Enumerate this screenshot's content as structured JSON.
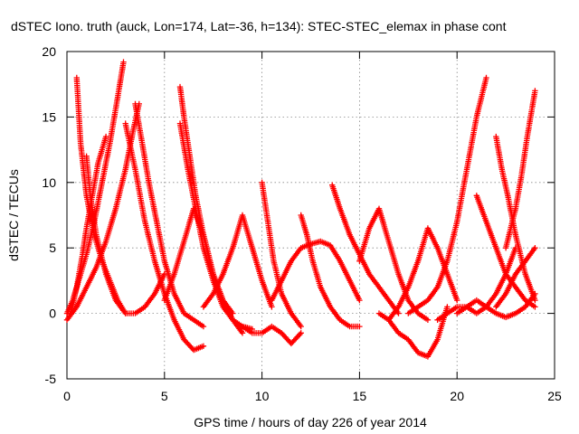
{
  "chart_data": {
    "type": "scatter",
    "title": "dSTEC Iono. truth (auck, Lon=174, Lat=-36, h=134): STEC-STEC_elemax in phase cont",
    "xlabel": "GPS time / hours of day 226 of year 2014",
    "ylabel": "dSTEC  / TECUs",
    "xlim": [
      0,
      25
    ],
    "ylim": [
      -5,
      20
    ],
    "xticks": [
      0,
      5,
      10,
      15,
      20,
      25
    ],
    "yticks": [
      -5,
      0,
      5,
      10,
      15,
      20
    ],
    "xtick_labels": [
      "0",
      "5",
      "10",
      "15",
      "20",
      "25"
    ],
    "ytick_labels": [
      "-5",
      "0",
      "5",
      "10",
      "15",
      "20"
    ],
    "grid": true,
    "marker": "+",
    "color": "#ff0000",
    "series": [
      {
        "x": [
          0.0,
          0.3,
          0.6,
          1.0,
          1.4,
          1.8,
          2.2,
          2.6,
          2.9
        ],
        "y": [
          0.0,
          1.0,
          2.5,
          4.5,
          7.0,
          10.0,
          13.0,
          16.5,
          19.2
        ]
      },
      {
        "x": [
          0.5,
          0.7,
          1.0,
          1.4,
          1.8,
          2.2,
          2.6,
          3.0
        ],
        "y": [
          18.0,
          13.0,
          9.0,
          6.0,
          4.0,
          2.5,
          1.0,
          0.0
        ]
      },
      {
        "x": [
          0.0,
          0.5,
          1.0,
          1.5,
          2.0,
          2.5,
          3.0,
          3.4,
          3.7
        ],
        "y": [
          -0.5,
          0.5,
          2.0,
          3.5,
          5.5,
          8.0,
          11.0,
          14.0,
          16.0
        ]
      },
      {
        "x": [
          1.0,
          1.2,
          1.5,
          2.0,
          2.5,
          3.0,
          3.5,
          4.0,
          4.5,
          5.0
        ],
        "y": [
          12.0,
          9.0,
          6.0,
          3.0,
          1.0,
          0.0,
          0.0,
          0.5,
          1.5,
          3.0
        ]
      },
      {
        "x": [
          0.2,
          0.5,
          0.8,
          1.0,
          1.3,
          1.6,
          2.0
        ],
        "y": [
          0.0,
          2.0,
          4.5,
          6.5,
          9.0,
          11.5,
          13.5
        ]
      },
      {
        "x": [
          3.5,
          3.8,
          4.2,
          4.6,
          5.0,
          5.5,
          6.0,
          6.5,
          7.0
        ],
        "y": [
          16.0,
          13.5,
          10.0,
          7.0,
          4.0,
          1.5,
          0.0,
          -0.5,
          -1.0
        ]
      },
      {
        "x": [
          3.0,
          3.5,
          4.0,
          4.5,
          5.0,
          5.5,
          6.0,
          6.5,
          7.0
        ],
        "y": [
          14.5,
          11.0,
          7.0,
          4.0,
          1.5,
          -0.5,
          -2.0,
          -2.8,
          -2.5
        ]
      },
      {
        "x": [
          5.0,
          5.5,
          6.0,
          6.5,
          7.0,
          7.5,
          8.0,
          8.5
        ],
        "y": [
          1.0,
          3.0,
          5.5,
          8.0,
          6.0,
          3.0,
          1.0,
          0.0
        ]
      },
      {
        "x": [
          5.8,
          6.0,
          6.3,
          6.6,
          7.0,
          7.5,
          8.0,
          8.5,
          9.0
        ],
        "y": [
          17.3,
          15.0,
          12.0,
          9.0,
          6.0,
          3.0,
          1.0,
          -0.5,
          -1.5
        ]
      },
      {
        "x": [
          5.8,
          6.2,
          6.6,
          7.0,
          7.5,
          8.0,
          8.5,
          9.0,
          9.5
        ],
        "y": [
          14.5,
          11.0,
          8.0,
          5.0,
          2.5,
          0.5,
          -0.5,
          -1.0,
          -1.2
        ]
      },
      {
        "x": [
          7.0,
          7.5,
          8.0,
          8.5,
          9.0,
          9.5,
          10.0,
          10.5
        ],
        "y": [
          0.5,
          1.5,
          3.0,
          5.0,
          7.5,
          5.0,
          2.5,
          0.5
        ]
      },
      {
        "x": [
          10.0,
          10.3,
          10.6,
          11.0,
          11.5,
          12.0
        ],
        "y": [
          10.0,
          7.0,
          4.0,
          1.5,
          0.0,
          -1.0
        ]
      },
      {
        "x": [
          9.0,
          9.5,
          10.0,
          10.5,
          11.0,
          11.5,
          12.0
        ],
        "y": [
          -1.0,
          -1.5,
          -1.5,
          -1.0,
          -1.5,
          -2.3,
          -1.5
        ]
      },
      {
        "x": [
          10.5,
          11.0,
          11.5,
          12.0,
          12.5,
          13.0,
          13.5,
          14.0,
          14.5,
          15.0
        ],
        "y": [
          1.0,
          2.5,
          4.0,
          5.0,
          5.3,
          5.5,
          5.2,
          4.0,
          2.5,
          1.0
        ]
      },
      {
        "x": [
          12.0,
          12.3,
          12.6,
          13.0,
          13.5,
          14.0,
          14.5,
          15.0
        ],
        "y": [
          7.5,
          6.0,
          4.0,
          2.0,
          0.5,
          -0.5,
          -1.0,
          -1.0
        ]
      },
      {
        "x": [
          13.6,
          14.0,
          14.5,
          15.0,
          15.5,
          16.0,
          16.5,
          17.0
        ],
        "y": [
          9.8,
          8.0,
          6.0,
          4.5,
          3.0,
          2.0,
          1.0,
          0.0
        ]
      },
      {
        "x": [
          15.0,
          15.5,
          16.0,
          16.5,
          17.0,
          17.5,
          18.0,
          18.5
        ],
        "y": [
          4.0,
          6.5,
          8.0,
          5.5,
          3.0,
          1.0,
          0.0,
          -0.5
        ]
      },
      {
        "x": [
          16.0,
          16.5,
          17.0,
          17.5,
          18.0,
          18.5,
          19.0,
          19.5
        ],
        "y": [
          0.0,
          -0.5,
          -1.5,
          -2.0,
          -3.0,
          -3.3,
          -2.0,
          0.5
        ]
      },
      {
        "x": [
          16.5,
          17.0,
          17.5,
          18.0,
          18.5,
          19.0,
          19.5,
          20.0
        ],
        "y": [
          -0.5,
          0.5,
          2.0,
          4.0,
          6.5,
          5.0,
          3.0,
          1.0
        ]
      },
      {
        "x": [
          17.5,
          18.0,
          18.5,
          19.0,
          19.5,
          20.0,
          20.5,
          21.0,
          21.5
        ],
        "y": [
          0.0,
          0.5,
          1.0,
          2.0,
          4.0,
          7.0,
          11.0,
          15.0,
          18.0
        ]
      },
      {
        "x": [
          19.0,
          19.5,
          20.0,
          20.5,
          21.0,
          21.5,
          22.0,
          22.5,
          23.0
        ],
        "y": [
          -0.5,
          0.0,
          0.5,
          0.5,
          0.0,
          0.5,
          1.5,
          3.0,
          5.0
        ]
      },
      {
        "x": [
          20.0,
          20.5,
          21.0,
          21.5,
          22.0,
          22.5,
          23.0,
          23.5,
          24.0
        ],
        "y": [
          0.0,
          0.5,
          1.0,
          0.5,
          0.0,
          -0.3,
          0.0,
          0.5,
          1.5
        ]
      },
      {
        "x": [
          21.0,
          21.5,
          22.0,
          22.5,
          23.0,
          23.5,
          24.0
        ],
        "y": [
          9.0,
          7.0,
          5.0,
          3.0,
          2.0,
          1.0,
          0.5
        ]
      },
      {
        "x": [
          22.0,
          22.3,
          22.6,
          23.0,
          23.5,
          24.0
        ],
        "y": [
          13.5,
          11.0,
          9.0,
          6.0,
          3.0,
          1.0
        ]
      },
      {
        "x": [
          22.5,
          23.0,
          23.3,
          23.6,
          24.0
        ],
        "y": [
          5.0,
          8.0,
          10.5,
          13.5,
          17.0
        ]
      },
      {
        "x": [
          22.0,
          22.5,
          23.0,
          23.5,
          24.0
        ],
        "y": [
          0.5,
          1.5,
          3.0,
          4.0,
          5.0
        ]
      }
    ]
  }
}
